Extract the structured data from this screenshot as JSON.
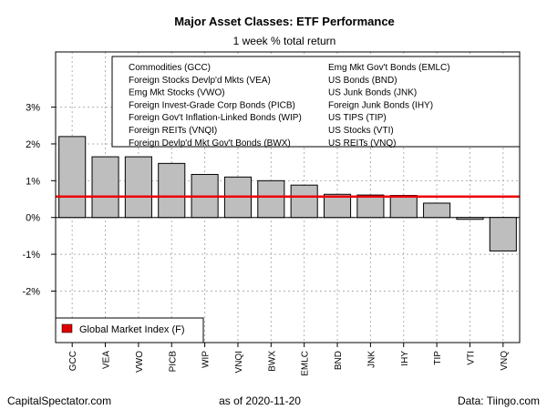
{
  "chart_data": {
    "type": "bar",
    "title": "Major Asset Classes: ETF Performance",
    "subtitle": "1 week % total return",
    "categories": [
      "GCC",
      "VEA",
      "VWO",
      "PICB",
      "WIP",
      "VNQI",
      "BWX",
      "EMLC",
      "BND",
      "JNK",
      "IHY",
      "TIP",
      "VTI",
      "VNQ"
    ],
    "values": [
      2.2,
      1.65,
      1.65,
      1.47,
      1.17,
      1.1,
      1.0,
      0.88,
      0.63,
      0.61,
      0.6,
      0.39,
      -0.05,
      -0.91
    ],
    "ylim": [
      -3.4,
      4.5
    ],
    "yticks": [
      -2,
      -1,
      0,
      1,
      2,
      3
    ],
    "ytick_labels": [
      "-2%",
      "-1%",
      "0%",
      "1%",
      "2%",
      "3%"
    ],
    "reference_line": {
      "value": 0.57,
      "color": "#ee0000"
    },
    "bar_color": "#bebebe",
    "grid": true,
    "legend_names": {
      "left": [
        "Commodities (GCC)",
        "Foreign Stocks Devlp'd Mkts (VEA)",
        "Emg Mkt Stocks (VWO)",
        "Foreign Invest-Grade Corp Bonds (PICB)",
        "Foreign Gov't Inflation-Linked Bonds (WIP)",
        "Foreign REITs (VNQI)",
        "Foreign Devlp'd Mkt Gov't Bonds (BWX)"
      ],
      "right": [
        "Emg Mkt Gov't Bonds (EMLC)",
        "US Bonds (BND)",
        "US Junk Bonds (JNK)",
        "Foreign Junk Bonds (IHY)",
        "US TIPS (TIP)",
        "US Stocks (VTI)",
        "US REITs (VNQ)"
      ],
      "placement": "top-right"
    },
    "legend_market": {
      "label": "Global Market Index (F)",
      "color": "#dd0000",
      "placement": "bottom-left"
    }
  },
  "footer": {
    "left": "CapitalSpectator.com",
    "center": "as of   2020-11-20",
    "right": "Data: Tiingo.com"
  }
}
